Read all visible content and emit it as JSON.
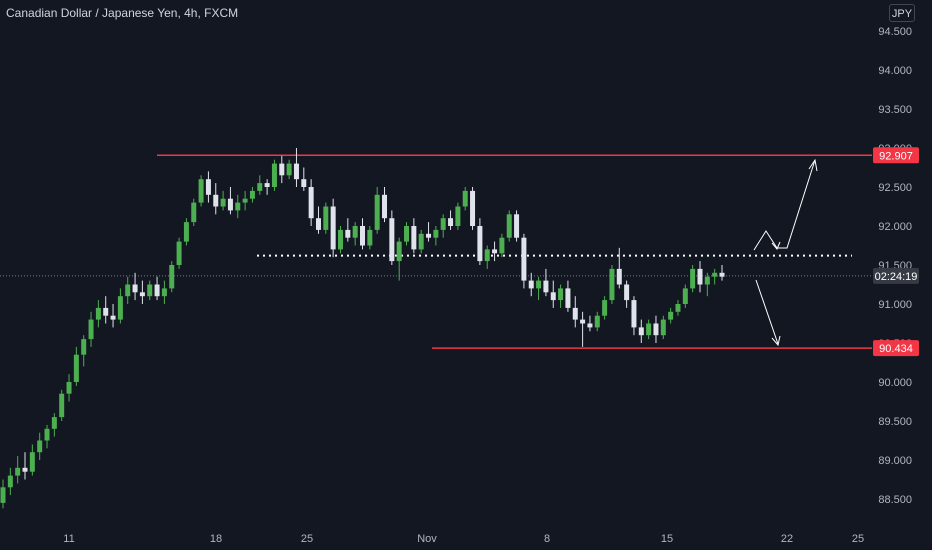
{
  "header": {
    "title": "Canadian Dollar / Japanese Yen, 4h, FXCM",
    "currency_button": "JPY"
  },
  "colors": {
    "background": "#131722",
    "up": "#4caf50",
    "down": "#e0e3eb",
    "resistance": "#f23645",
    "dotted": "#ffffff",
    "axis_text": "#b2b5be"
  },
  "chart_data": {
    "type": "candlestick",
    "title": "Canadian Dollar / Japanese Yen, 4h, FXCM",
    "y_axis": {
      "ticks": [
        88.5,
        89.0,
        89.5,
        90.0,
        90.5,
        91.0,
        91.5,
        92.0,
        92.5,
        93.0,
        93.5,
        94.0,
        94.5
      ]
    },
    "x_axis": {
      "ticks": [
        "11",
        "18",
        "25",
        "Nov",
        "8",
        "15",
        "22",
        "25"
      ]
    },
    "price_tags": [
      {
        "name": "resistance",
        "value": "92.907"
      },
      {
        "name": "current_time",
        "value": "02:24:19"
      },
      {
        "name": "support",
        "value": "90.434"
      }
    ],
    "levels": {
      "resistance": 92.907,
      "support": 90.434,
      "neckline": 91.62,
      "current": 91.36
    },
    "candles": [
      [
        88.45,
        88.75,
        88.38,
        88.65
      ],
      [
        88.65,
        88.9,
        88.55,
        88.8
      ],
      [
        88.8,
        89.05,
        88.7,
        88.9
      ],
      [
        88.9,
        89.1,
        88.75,
        88.85
      ],
      [
        88.85,
        89.2,
        88.8,
        89.1
      ],
      [
        89.1,
        89.35,
        89.0,
        89.25
      ],
      [
        89.25,
        89.45,
        89.15,
        89.4
      ],
      [
        89.4,
        89.6,
        89.3,
        89.55
      ],
      [
        89.55,
        89.9,
        89.5,
        89.85
      ],
      [
        89.85,
        90.1,
        89.75,
        90.0
      ],
      [
        90.0,
        90.45,
        89.95,
        90.35
      ],
      [
        90.35,
        90.6,
        90.2,
        90.55
      ],
      [
        90.55,
        90.9,
        90.45,
        90.8
      ],
      [
        90.8,
        91.05,
        90.7,
        90.95
      ],
      [
        90.95,
        91.1,
        90.75,
        90.85
      ],
      [
        90.85,
        91.0,
        90.7,
        90.8
      ],
      [
        90.8,
        91.2,
        90.75,
        91.1
      ],
      [
        91.1,
        91.35,
        91.0,
        91.25
      ],
      [
        91.25,
        91.4,
        91.05,
        91.15
      ],
      [
        91.15,
        91.3,
        91.0,
        91.1
      ],
      [
        91.1,
        91.3,
        91.05,
        91.25
      ],
      [
        91.25,
        91.35,
        91.05,
        91.1
      ],
      [
        91.1,
        91.3,
        91.0,
        91.2
      ],
      [
        91.2,
        91.55,
        91.15,
        91.5
      ],
      [
        91.5,
        91.85,
        91.45,
        91.8
      ],
      [
        91.8,
        92.1,
        91.75,
        92.05
      ],
      [
        92.05,
        92.35,
        92.0,
        92.3
      ],
      [
        92.3,
        92.65,
        92.25,
        92.6
      ],
      [
        92.6,
        92.7,
        92.3,
        92.4
      ],
      [
        92.4,
        92.55,
        92.15,
        92.25
      ],
      [
        92.25,
        92.45,
        92.2,
        92.35
      ],
      [
        92.35,
        92.5,
        92.15,
        92.2
      ],
      [
        92.2,
        92.4,
        92.1,
        92.3
      ],
      [
        92.3,
        92.45,
        92.2,
        92.35
      ],
      [
        92.35,
        92.5,
        92.3,
        92.45
      ],
      [
        92.45,
        92.65,
        92.4,
        92.55
      ],
      [
        92.55,
        92.6,
        92.4,
        92.5
      ],
      [
        92.5,
        92.85,
        92.45,
        92.8
      ],
      [
        92.8,
        92.9,
        92.55,
        92.65
      ],
      [
        92.65,
        92.85,
        92.6,
        92.8
      ],
      [
        92.8,
        93.0,
        92.5,
        92.6
      ],
      [
        92.6,
        92.75,
        92.45,
        92.5
      ],
      [
        92.5,
        92.6,
        92.0,
        92.1
      ],
      [
        92.1,
        92.25,
        91.9,
        91.95
      ],
      [
        91.95,
        92.3,
        91.9,
        92.25
      ],
      [
        92.25,
        92.35,
        91.6,
        91.7
      ],
      [
        91.7,
        92.0,
        91.65,
        91.95
      ],
      [
        91.95,
        92.1,
        91.8,
        91.85
      ],
      [
        91.85,
        92.05,
        91.75,
        92.0
      ],
      [
        92.0,
        92.1,
        91.7,
        91.75
      ],
      [
        91.75,
        92.0,
        91.7,
        91.95
      ],
      [
        91.95,
        92.5,
        91.9,
        92.4
      ],
      [
        92.4,
        92.5,
        92.05,
        92.1
      ],
      [
        92.1,
        92.2,
        91.5,
        91.55
      ],
      [
        91.55,
        91.85,
        91.3,
        91.8
      ],
      [
        91.8,
        92.05,
        91.75,
        92.0
      ],
      [
        92.0,
        92.1,
        91.65,
        91.7
      ],
      [
        91.7,
        91.95,
        91.65,
        91.9
      ],
      [
        91.9,
        92.05,
        91.8,
        91.85
      ],
      [
        91.85,
        92.0,
        91.75,
        91.95
      ],
      [
        91.95,
        92.15,
        91.85,
        92.1
      ],
      [
        92.1,
        92.2,
        91.95,
        92.0
      ],
      [
        92.0,
        92.3,
        91.95,
        92.25
      ],
      [
        92.25,
        92.5,
        92.2,
        92.45
      ],
      [
        92.45,
        92.5,
        91.95,
        92.0
      ],
      [
        92.0,
        92.1,
        91.5,
        91.55
      ],
      [
        91.55,
        91.75,
        91.45,
        91.7
      ],
      [
        91.7,
        91.8,
        91.55,
        91.65
      ],
      [
        91.65,
        91.9,
        91.6,
        91.85
      ],
      [
        91.85,
        92.2,
        91.8,
        92.15
      ],
      [
        92.15,
        92.2,
        91.8,
        91.85
      ],
      [
        91.85,
        91.9,
        91.2,
        91.3
      ],
      [
        91.3,
        91.4,
        91.1,
        91.2
      ],
      [
        91.2,
        91.35,
        91.05,
        91.3
      ],
      [
        91.3,
        91.45,
        91.1,
        91.15
      ],
      [
        91.15,
        91.3,
        90.95,
        91.05
      ],
      [
        91.05,
        91.25,
        90.95,
        91.2
      ],
      [
        91.2,
        91.3,
        90.9,
        90.95
      ],
      [
        90.95,
        91.1,
        90.7,
        90.8
      ],
      [
        90.8,
        90.9,
        90.45,
        90.75
      ],
      [
        90.75,
        90.85,
        90.65,
        90.7
      ],
      [
        90.7,
        90.9,
        90.65,
        90.85
      ],
      [
        90.85,
        91.1,
        90.8,
        91.05
      ],
      [
        91.05,
        91.5,
        91.0,
        91.45
      ],
      [
        91.45,
        91.72,
        91.2,
        91.25
      ],
      [
        91.25,
        91.3,
        90.95,
        91.05
      ],
      [
        91.05,
        91.1,
        90.6,
        90.7
      ],
      [
        90.7,
        90.8,
        90.5,
        90.6
      ],
      [
        90.6,
        90.8,
        90.55,
        90.75
      ],
      [
        90.75,
        90.85,
        90.5,
        90.6
      ],
      [
        90.6,
        90.85,
        90.55,
        90.8
      ],
      [
        90.8,
        90.95,
        90.75,
        90.9
      ],
      [
        90.9,
        91.05,
        90.85,
        91.0
      ],
      [
        91.0,
        91.25,
        90.95,
        91.2
      ],
      [
        91.2,
        91.5,
        91.15,
        91.45
      ],
      [
        91.45,
        91.55,
        91.15,
        91.25
      ],
      [
        91.25,
        91.4,
        91.1,
        91.35
      ],
      [
        91.35,
        91.45,
        91.25,
        91.4
      ],
      [
        91.4,
        91.5,
        91.3,
        91.35
      ]
    ]
  }
}
